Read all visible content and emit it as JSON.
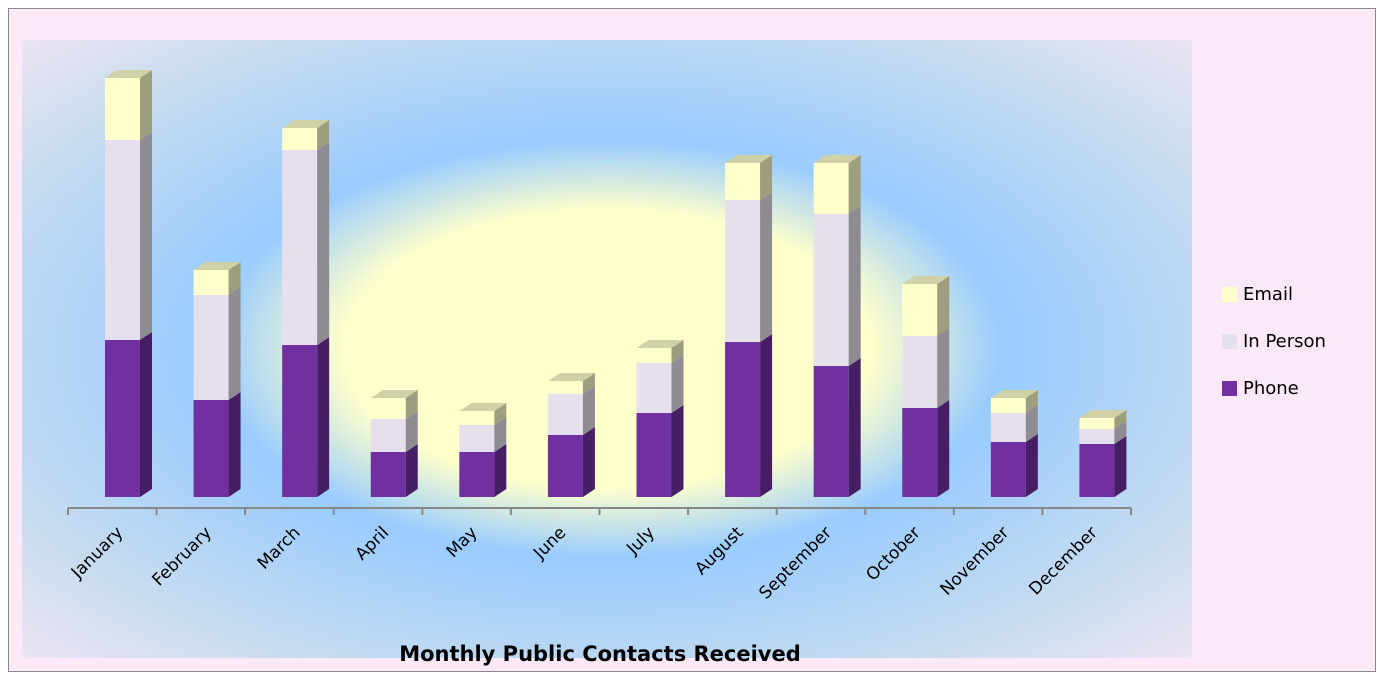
{
  "chart_data": {
    "type": "bar3d-stacked",
    "title": "Monthly Public Contacts Received",
    "categories": [
      "January",
      "February",
      "March",
      "April",
      "May",
      "June",
      "July",
      "August",
      "September",
      "October",
      "November",
      "December"
    ],
    "series": [
      {
        "name": "Phone",
        "color": "#7030a0",
        "values": [
          157,
          97,
          152,
          45,
          45,
          62,
          84,
          155,
          131,
          89,
          55,
          53
        ]
      },
      {
        "name": "In Person",
        "color": "#e6e0ec",
        "values": [
          200,
          105,
          195,
          33,
          27,
          41,
          50,
          142,
          152,
          72,
          29,
          15
        ]
      },
      {
        "name": "Email",
        "color": "#ffffcc",
        "values": [
          62,
          25,
          22,
          21,
          14,
          13,
          15,
          37,
          51,
          52,
          15,
          11
        ]
      }
    ],
    "ylim": [
      0,
      440
    ],
    "legend": "right"
  }
}
